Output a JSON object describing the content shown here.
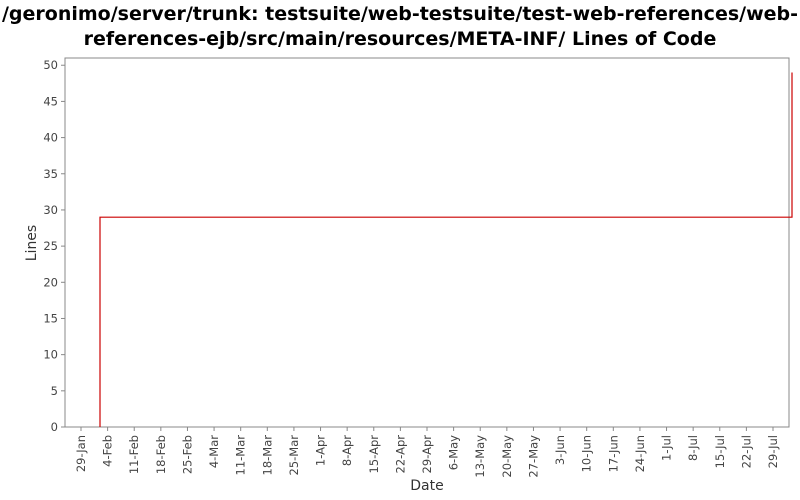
{
  "chart_data": {
    "type": "line",
    "title": "/geronimo/server/trunk: testsuite/web-testsuite/test-web-references/web-references-ejb/src/main/resources/META-INF/ Lines of Code",
    "xlabel": "Date",
    "ylabel": "Lines",
    "ylim": [
      0,
      51
    ],
    "y_ticks": [
      0,
      5,
      10,
      15,
      20,
      25,
      30,
      35,
      40,
      45,
      50
    ],
    "x_tick_labels": [
      "29-Jan",
      "4-Feb",
      "11-Feb",
      "18-Feb",
      "25-Feb",
      "4-Mar",
      "11-Mar",
      "18-Mar",
      "25-Mar",
      "1-Apr",
      "8-Apr",
      "15-Apr",
      "22-Apr",
      "29-Apr",
      "6-May",
      "13-May",
      "20-May",
      "27-May",
      "3-Jun",
      "10-Jun",
      "17-Jun",
      "24-Jun",
      "1-Jul",
      "8-Jul",
      "15-Jul",
      "22-Jul",
      "29-Jul"
    ],
    "step": true,
    "grid": false,
    "series": [
      {
        "color": "#cc0000",
        "x": [
          "02-03",
          "02-03",
          "08-04",
          "08-04"
        ],
        "y": [
          0,
          29,
          29,
          49
        ]
      }
    ]
  }
}
